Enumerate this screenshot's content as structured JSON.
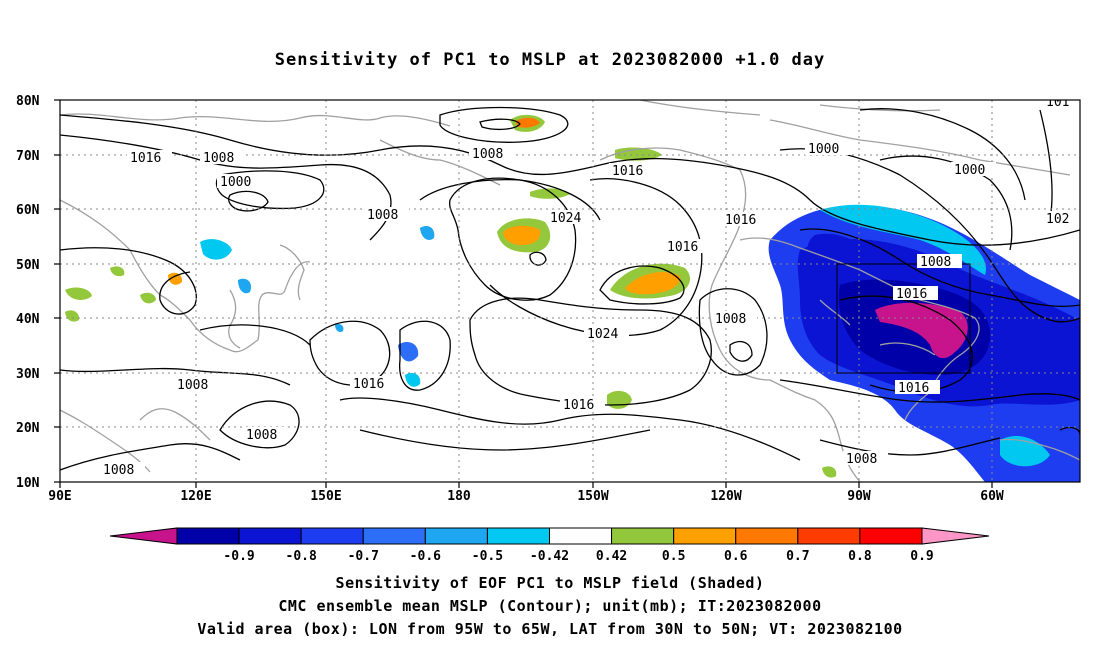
{
  "title": "Sensitivity of PC1 to MSLP at 2023082000 +1.0 day",
  "axes": {
    "lat_labels": [
      "80N",
      "70N",
      "60N",
      "50N",
      "40N",
      "30N",
      "20N",
      "10N"
    ],
    "lon_labels": [
      "90E",
      "120E",
      "150E",
      "180",
      "150W",
      "120W",
      "90W",
      "60W"
    ],
    "lon_range": [
      90,
      315
    ],
    "lat_range": [
      10,
      80
    ],
    "grid": "dotted"
  },
  "valid_box": {
    "lon_min": "95W",
    "lon_max": "65W",
    "lat_min": "30N",
    "lat_max": "50N"
  },
  "colorbar": {
    "labels": [
      "-0.9",
      "-0.8",
      "-0.7",
      "-0.6",
      "-0.5",
      "-0.42",
      "0.42",
      "0.5",
      "0.6",
      "0.7",
      "0.8",
      "0.9"
    ],
    "colors": [
      "#0000a8",
      "#0a14d2",
      "#1e3cf0",
      "#2c6ef5",
      "#1ea6f0",
      "#00c8f0",
      "#ffffff",
      "#94c83c",
      "#ffa000",
      "#ff7800",
      "#ff3c00",
      "#ff0000"
    ],
    "low_extend_color": "#c8148c",
    "high_extend_color": "#ff96c8"
  },
  "contour_labels": [
    "1016",
    "1008",
    "1000",
    "1008",
    "1008",
    "1024",
    "1016",
    "1016",
    "1016",
    "1000",
    "1000",
    "1008",
    "1016",
    "1024",
    "1016",
    "1008",
    "1008",
    "1008",
    "1016",
    "1016",
    "1008",
    "1008",
    "101",
    "102"
  ],
  "footer": {
    "line1": "Sensitivity of EOF PC1 to MSLP field (Shaded)",
    "line2": "CMC ensemble mean MSLP (Contour); unit(mb); IT:2023082000",
    "line3": "Valid area (box): LON from 95W to 65W, LAT from 30N to 50N; VT: 2023082100"
  }
}
